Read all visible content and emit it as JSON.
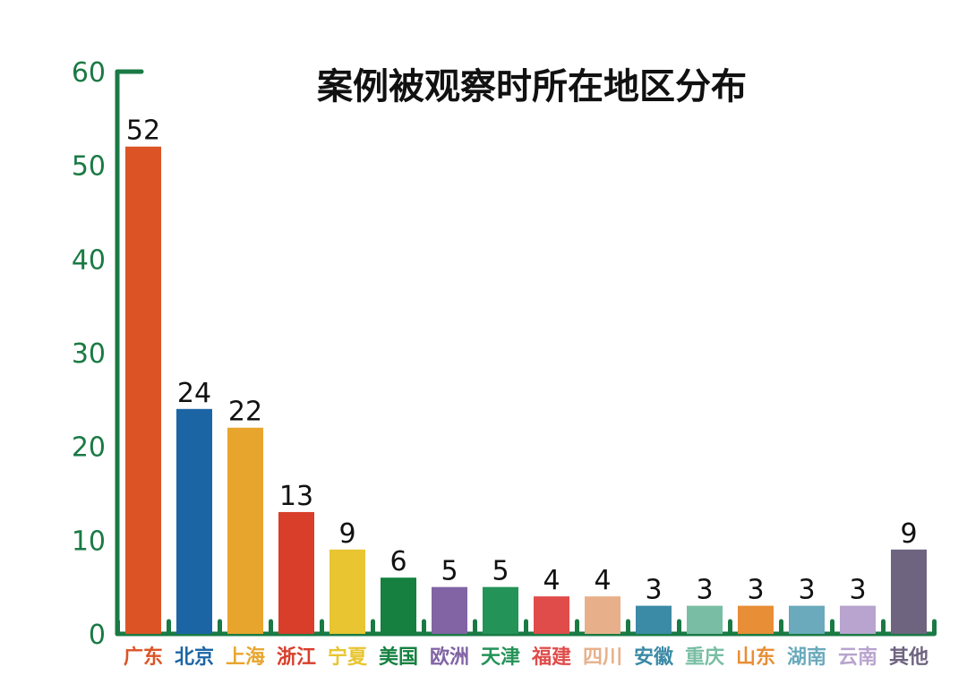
{
  "chart_data": {
    "type": "bar",
    "title": "案例被观察时所在地区分布",
    "categories": [
      "广东",
      "北京",
      "上海",
      "浙江",
      "宁夏",
      "美国",
      "欧洲",
      "天津",
      "福建",
      "四川",
      "安徽",
      "重庆",
      "山东",
      "湖南",
      "云南",
      "其他"
    ],
    "values": [
      52,
      24,
      22,
      13,
      9,
      6,
      5,
      5,
      4,
      4,
      3,
      3,
      3,
      3,
      3,
      9
    ],
    "colors": [
      "#dc5426",
      "#1c65a5",
      "#e8a52e",
      "#d83e2a",
      "#e8c531",
      "#158040",
      "#8264a5",
      "#249358",
      "#e04c4a",
      "#e8b08a",
      "#3b8aa6",
      "#79bea4",
      "#e88e36",
      "#6aaabc",
      "#b8a4cf",
      "#6e6480"
    ],
    "ylim": [
      0,
      60
    ],
    "yticks": [
      0,
      10,
      20,
      30,
      40,
      50,
      60
    ],
    "axis_color": "#1a7a44",
    "grid": false,
    "legend": "none",
    "xlabel": "",
    "ylabel": ""
  }
}
